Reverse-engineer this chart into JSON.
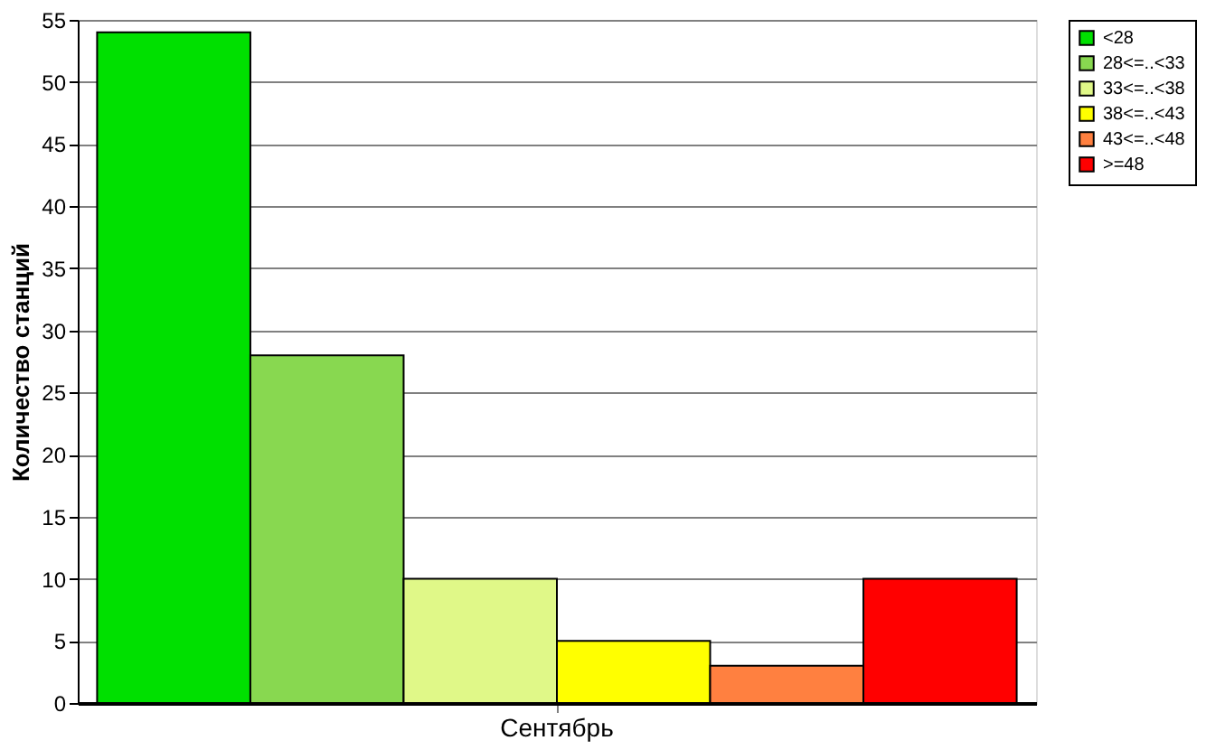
{
  "chart_data": {
    "type": "bar",
    "ylabel": "Количество станций",
    "categories": [
      "Сентябрь"
    ],
    "series": [
      {
        "name": "<28",
        "color": "#00e000",
        "values": [
          54
        ]
      },
      {
        "name": "28<=..<33",
        "color": "#88d850",
        "values": [
          28
        ]
      },
      {
        "name": "33<=..<38",
        "color": "#e0f888",
        "values": [
          10
        ]
      },
      {
        "name": "38<=..<43",
        "color": "#ffff00",
        "values": [
          5
        ]
      },
      {
        "name": "43<=..<48",
        "color": "#ff8040",
        "values": [
          3
        ]
      },
      {
        "name": ">=48",
        "color": "#ff0000",
        "values": [
          10
        ]
      }
    ],
    "ylim": [
      0,
      55
    ],
    "yticks": [
      0,
      5,
      10,
      15,
      20,
      25,
      30,
      35,
      40,
      45,
      50,
      55
    ],
    "grid": "y",
    "legend": "top right"
  }
}
